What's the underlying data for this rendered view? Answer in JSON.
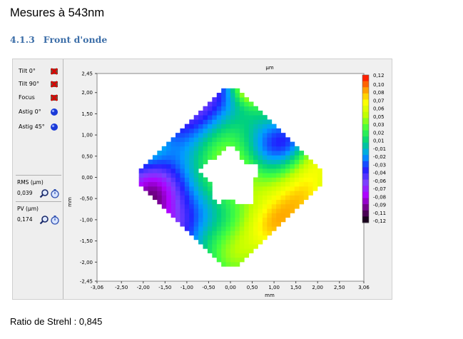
{
  "document": {
    "heading": "Mesures à 543nm",
    "section_number": "4.1.3",
    "section_title": "Front d'onde",
    "strehl": "Ratio de Strehl : 0,845"
  },
  "panel": {
    "terms": [
      {
        "label": "Tilt 0°",
        "icon": "red-x-icon"
      },
      {
        "label": "Tilt 90°",
        "icon": "red-x-icon"
      },
      {
        "label": "Focus",
        "icon": "red-x-icon"
      },
      {
        "label": "Astig 0°",
        "icon": "blue-dot-icon"
      },
      {
        "label": "Astig 45°",
        "icon": "blue-dot-icon"
      }
    ],
    "rms_label": "RMS (µm)",
    "rms_value": "0,039",
    "pv_label": "PV (µm)",
    "pv_value": "0,174"
  },
  "chart_data": {
    "type": "heatmap",
    "title": "",
    "xlabel": "mm",
    "ylabel": "mm",
    "top_label": "µm",
    "xlim": [
      -3.06,
      3.06
    ],
    "ylim": [
      -2.45,
      2.45
    ],
    "x_ticks": [
      "-3,06",
      "-2,50",
      "-2,00",
      "-1,50",
      "-1,00",
      "-0,50",
      "0,00",
      "0,50",
      "1,00",
      "1,50",
      "2,00",
      "2,50",
      "3,06"
    ],
    "x_tick_values": [
      -3.06,
      -2.5,
      -2.0,
      -1.5,
      -1.0,
      -0.5,
      0.0,
      0.5,
      1.0,
      1.5,
      2.0,
      2.5,
      3.06
    ],
    "y_ticks": [
      "2,45",
      "2,00",
      "1,50",
      "1,00",
      "0,50",
      "0,00",
      "-0,50",
      "-1,00",
      "-1,50",
      "-2,00",
      "-2,45"
    ],
    "y_tick_values": [
      2.45,
      2.0,
      1.5,
      1.0,
      0.5,
      0.0,
      -0.5,
      -1.0,
      -1.5,
      -2.0,
      -2.45
    ],
    "colorbar_labels": [
      "0,12",
      "0,10",
      "0,08",
      "0,07",
      "0,06",
      "0,05",
      "0,03",
      "0,02",
      "0,01",
      "-0,01",
      "-0,02",
      "-0,03",
      "-0,04",
      "-0,06",
      "-0,07",
      "-0,08",
      "-0,09",
      "-0,11",
      "-0,12"
    ],
    "colorbar_range": [
      -0.12,
      0.12
    ],
    "colors": [
      "#000000",
      "#6a007a",
      "#b000ff",
      "#7a40ff",
      "#2020ff",
      "#00a0ff",
      "#00d080",
      "#40ff40",
      "#c0ff00",
      "#ffff00",
      "#ff9000",
      "#ff0000"
    ],
    "grid": false
  }
}
